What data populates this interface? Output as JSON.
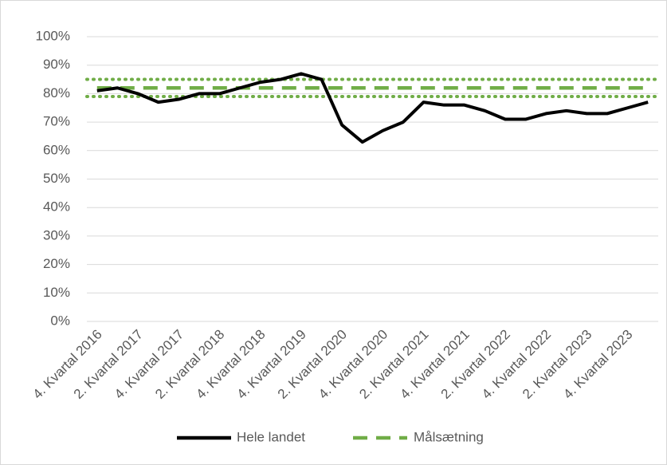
{
  "chart_data": {
    "type": "line",
    "categories": [
      "4. Kvartal 2016",
      null,
      "2. Kvartal 2017",
      null,
      "4. Kvartal 2017",
      null,
      "2. Kvartal 2018",
      null,
      "4. Kvartal 2018",
      null,
      "4. Kvartal 2019",
      null,
      "2. Kvartal 2020",
      null,
      "4. Kvartal 2020",
      null,
      "2. Kvartal 2021",
      null,
      "4. Kvartal 2021",
      null,
      "2. Kvartal 2022",
      null,
      "4. Kvartal 2022",
      null,
      "2. Kvartal 2023",
      null,
      "4. Kvartal 2023",
      null
    ],
    "series": [
      {
        "name": "Hele landet",
        "color": "#000000",
        "style": "solid",
        "values": [
          81,
          82,
          80,
          77,
          78,
          80,
          80,
          82,
          84,
          85,
          87,
          85,
          69,
          63,
          67,
          70,
          77,
          76,
          76,
          74,
          71,
          71,
          73,
          74,
          73,
          73,
          75,
          77
        ]
      },
      {
        "name": "Målsætning",
        "color": "#70ad47",
        "style": "dashed",
        "values": [
          82,
          82,
          82,
          82,
          82,
          82,
          82,
          82,
          82,
          82,
          82,
          82,
          82,
          82,
          82,
          82,
          82,
          82,
          82,
          82,
          82,
          82,
          82,
          82,
          82,
          82,
          82,
          82
        ]
      }
    ],
    "bounds": {
      "color": "#70ad47",
      "style": "dotted",
      "values": [
        79,
        85
      ]
    },
    "ylim": [
      0,
      100
    ],
    "yticks": [
      {
        "value": 0,
        "label": "0%"
      },
      {
        "value": 10,
        "label": "10%"
      },
      {
        "value": 20,
        "label": "20%"
      },
      {
        "value": 30,
        "label": "30%"
      },
      {
        "value": 40,
        "label": "40%"
      },
      {
        "value": 50,
        "label": "50%"
      },
      {
        "value": 60,
        "label": "60%"
      },
      {
        "value": 70,
        "label": "70%"
      },
      {
        "value": 80,
        "label": "80%"
      },
      {
        "value": 90,
        "label": "90%"
      },
      {
        "value": 100,
        "label": "100%"
      }
    ],
    "grid": true,
    "legend": "bottom"
  }
}
